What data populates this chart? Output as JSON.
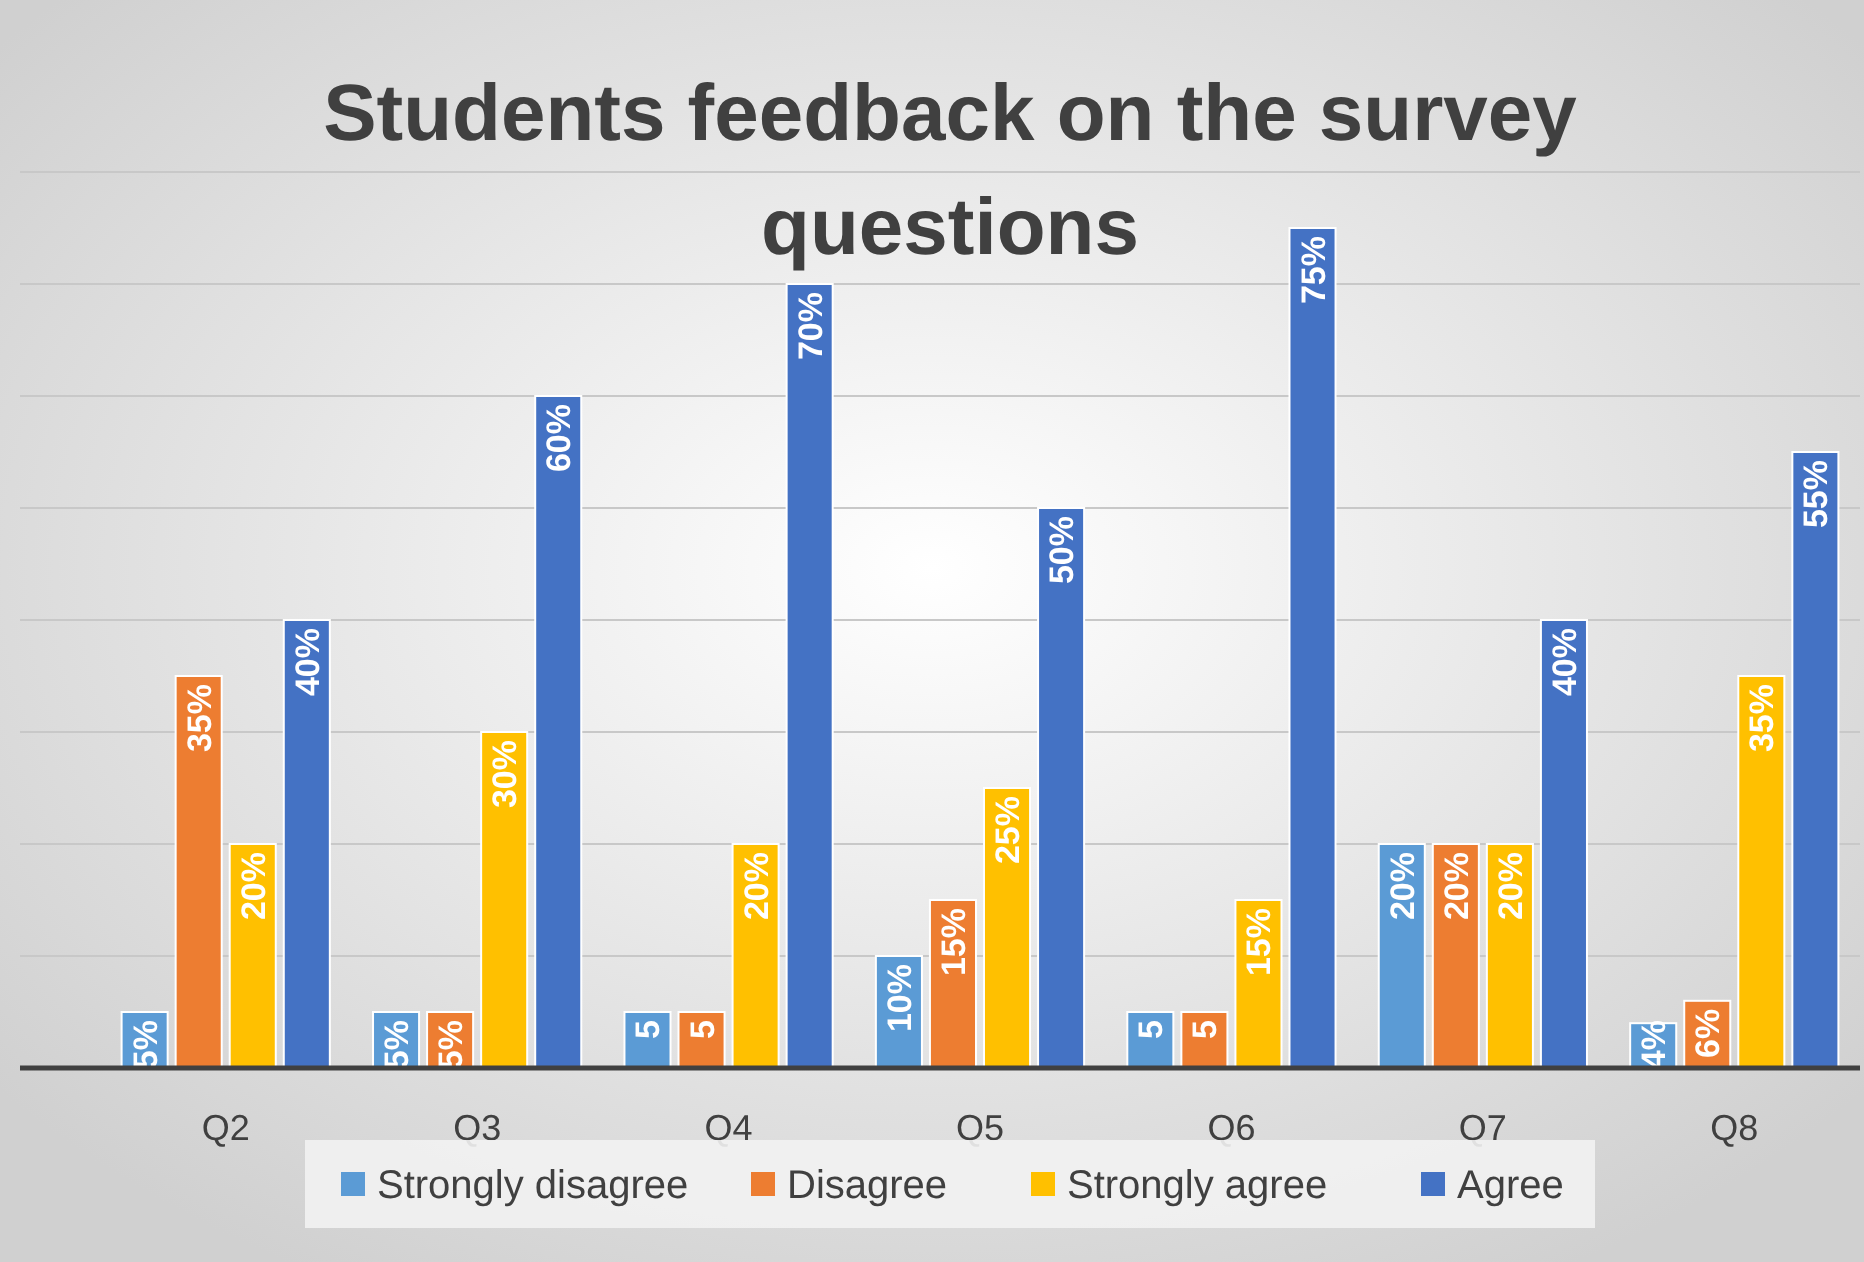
{
  "chart_data": {
    "type": "bar",
    "title": "Students feedback on the survey questions",
    "categories": [
      "Q2",
      "Q3",
      "Q4",
      "Q5",
      "Q6",
      "Q7",
      "Q8"
    ],
    "series": [
      {
        "name": "Strongly disagree",
        "color": "#5b9bd5",
        "values": [
          5,
          5,
          5,
          10,
          5,
          20,
          4
        ],
        "value_labels": [
          "5%",
          "5%",
          "5",
          "10%",
          "5",
          "20%",
          "4%"
        ]
      },
      {
        "name": "Disagree",
        "color": "#ed7d31",
        "values": [
          35,
          5,
          5,
          15,
          5,
          20,
          6
        ],
        "value_labels": [
          "35%",
          "5%",
          "5",
          "15%",
          "5",
          "20%",
          "6%"
        ]
      },
      {
        "name": "Strongly agree",
        "color": "#ffc000",
        "values": [
          20,
          30,
          20,
          25,
          15,
          20,
          35
        ],
        "value_labels": [
          "20%",
          "30%",
          "20%",
          "25%",
          "15%",
          "20%",
          "35%"
        ]
      },
      {
        "name": "Agree",
        "color": "#4472c4",
        "values": [
          40,
          60,
          70,
          50,
          75,
          40,
          55
        ],
        "value_labels": [
          "40%",
          "60%",
          "70%",
          "50%",
          "75%",
          "40%",
          "55%"
        ]
      }
    ],
    "ylim": [
      0,
      80
    ],
    "yticks": [
      {
        "value": 0,
        "label": null
      },
      {
        "value": 10,
        "label": null
      },
      {
        "value": 20,
        "label": null
      },
      {
        "value": 30,
        "label": null
      },
      {
        "value": 40,
        "label": null
      },
      {
        "value": 50,
        "label": null
      },
      {
        "value": 60,
        "label": null
      },
      {
        "value": 70,
        "label": null
      },
      {
        "value": 80,
        "label": null
      }
    ],
    "tick_labels": "x",
    "grid": "y",
    "legend": "bottom"
  }
}
